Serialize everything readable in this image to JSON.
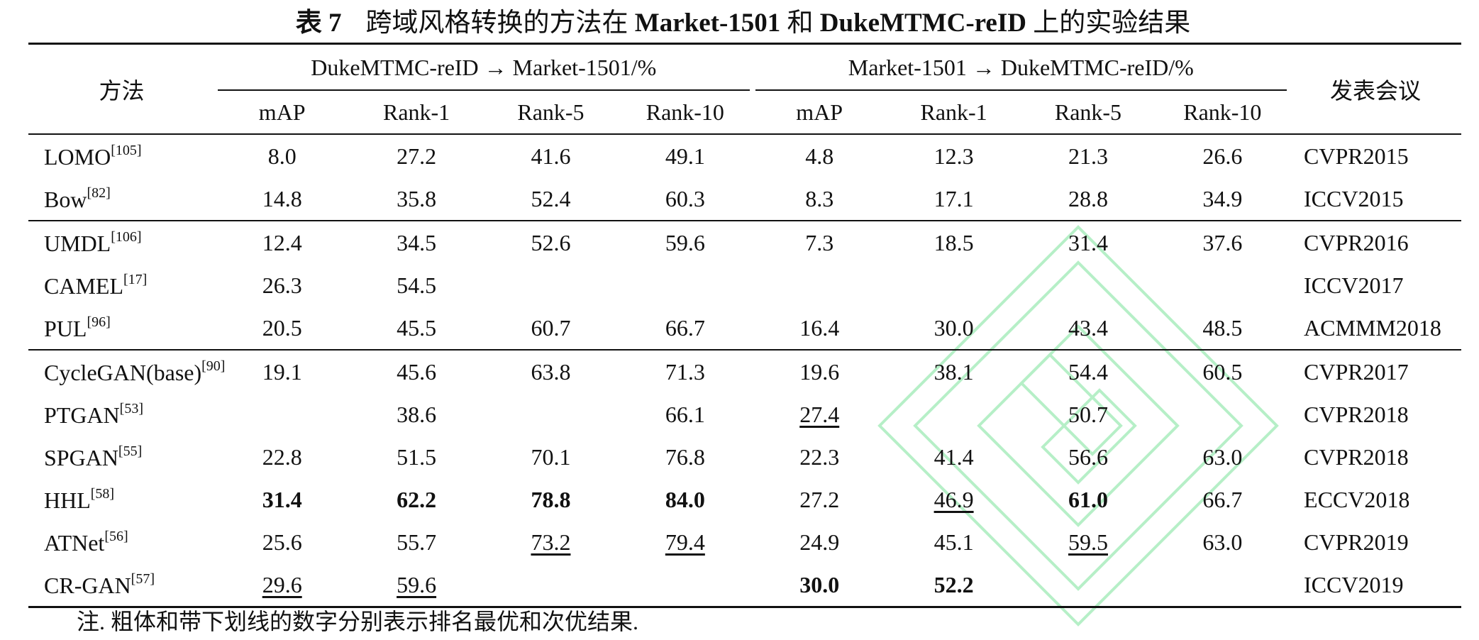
{
  "caption": {
    "number": "表 7",
    "parts": [
      "跨域风格转换的方法在 ",
      "Market-1501",
      " 和 ",
      "DukeMTMC-reID",
      " 上的实验结果"
    ]
  },
  "header": {
    "method": "方法",
    "group1": "DukeMTMC-reID → Market-1501/%",
    "group2": "Market-1501 → DukeMTMC-reID/%",
    "venue": "发表会议",
    "metrics": [
      "mAP",
      "Rank-1",
      "Rank-5",
      "Rank-10",
      "mAP",
      "Rank-1",
      "Rank-5",
      "Rank-10"
    ]
  },
  "rows": [
    {
      "name": "LOMO",
      "ref": "[105]",
      "values": [
        "8.0",
        "27.2",
        "41.6",
        "49.1",
        "4.8",
        "12.3",
        "21.3",
        "26.6"
      ],
      "venue": "CVPR2015"
    },
    {
      "name": "Bow",
      "ref": "[82]",
      "values": [
        "14.8",
        "35.8",
        "52.4",
        "60.3",
        "8.3",
        "17.1",
        "28.8",
        "34.9"
      ],
      "venue": "ICCV2015"
    },
    {
      "name": "UMDL",
      "ref": "[106]",
      "values": [
        "12.4",
        "34.5",
        "52.6",
        "59.6",
        "7.3",
        "18.5",
        "31.4",
        "37.6"
      ],
      "venue": "CVPR2016"
    },
    {
      "name": "CAMEL",
      "ref": "[17]",
      "values": [
        "26.3",
        "54.5",
        "",
        "",
        "",
        "",
        "",
        ""
      ],
      "venue": "ICCV2017"
    },
    {
      "name": "PUL",
      "ref": "[96]",
      "values": [
        "20.5",
        "45.5",
        "60.7",
        "66.7",
        "16.4",
        "30.0",
        "43.4",
        "48.5"
      ],
      "venue": "ACMMM2018"
    },
    {
      "name": "CycleGAN(base)",
      "ref": "[90]",
      "values": [
        "19.1",
        "45.6",
        "63.8",
        "71.3",
        "19.6",
        "38.1",
        "54.4",
        "60.5"
      ],
      "venue": "CVPR2017"
    },
    {
      "name": "PTGAN",
      "ref": "[53]",
      "values": [
        "",
        "38.6",
        "",
        "66.1",
        "27.4",
        "",
        "50.7",
        ""
      ],
      "venue": "CVPR2018"
    },
    {
      "name": "SPGAN",
      "ref": "[55]",
      "values": [
        "22.8",
        "51.5",
        "70.1",
        "76.8",
        "22.3",
        "41.4",
        "56.6",
        "63.0"
      ],
      "venue": "CVPR2018"
    },
    {
      "name": "HHL",
      "ref": "[58]",
      "values": [
        "31.4",
        "62.2",
        "78.8",
        "84.0",
        "27.2",
        "46.9",
        "61.0",
        "66.7"
      ],
      "venue": "ECCV2018"
    },
    {
      "name": "ATNet",
      "ref": "[56]",
      "values": [
        "25.6",
        "55.7",
        "73.2",
        "79.4",
        "24.9",
        "45.1",
        "59.5",
        "63.0"
      ],
      "venue": "CVPR2019"
    },
    {
      "name": "CR-GAN",
      "ref": "[57]",
      "values": [
        "29.6",
        "59.6",
        "",
        "",
        "30.0",
        "52.2",
        "",
        ""
      ],
      "venue": "ICCV2019"
    }
  ],
  "note": "注. 粗体和带下划线的数字分别表示排名最优和次优结果."
}
